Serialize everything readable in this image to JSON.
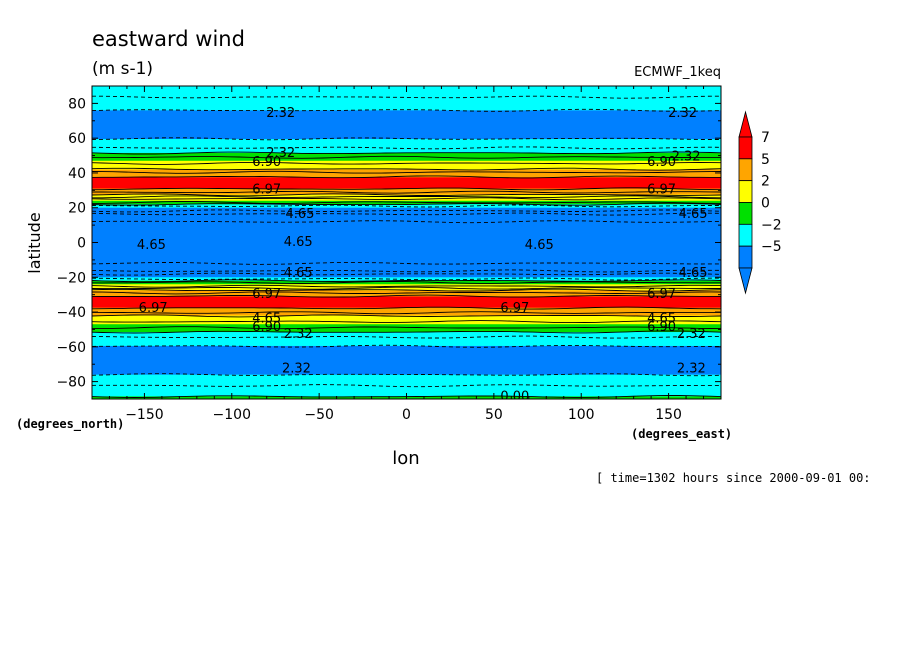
{
  "chart_data": {
    "type": "heatmap",
    "title": "eastward wind",
    "units": "(m s-1)",
    "dataset": "ECMWF_1keq",
    "xlabel": "lon",
    "ylabel": "latitude",
    "x_units": "(degrees_east)",
    "y_units": "(degrees_north)",
    "time_label": "[ time=1302 hours since 2000-09-01 00:",
    "xlim": [
      -180,
      180
    ],
    "ylim": [
      -90,
      90
    ],
    "x_ticks": [
      -150,
      -100,
      -50,
      0,
      50,
      100,
      150
    ],
    "y_ticks": [
      -80,
      -60,
      -40,
      -20,
      0,
      20,
      40,
      60,
      80
    ],
    "colorbar": {
      "ticks": [
        7,
        5,
        2,
        0,
        -2,
        -5
      ],
      "colors": [
        "#ff0000",
        "#ffa500",
        "#ffff00",
        "#00e000",
        "#00ffff",
        "#0080ff"
      ],
      "extend": "both"
    },
    "zonal_profile": {
      "lat": [
        -90,
        -85,
        -78,
        -70,
        -62,
        -55,
        -50,
        -47,
        -44,
        -40,
        -36,
        -32,
        -28,
        -24,
        -20,
        -16,
        -10,
        0,
        10,
        16,
        20,
        24,
        28,
        32,
        36,
        40,
        44,
        47,
        50,
        55,
        62,
        70,
        78,
        85,
        90
      ],
      "u": [
        0.2,
        -0.5,
        -1.8,
        -2.6,
        -2.4,
        -1.2,
        0.5,
        2.0,
        4.0,
        6.2,
        7.6,
        7.6,
        5.5,
        2.0,
        -2.0,
        -4.2,
        -5.4,
        -5.6,
        -5.4,
        -4.2,
        -2.0,
        2.0,
        5.5,
        7.6,
        7.6,
        6.2,
        4.0,
        2.0,
        0.5,
        -1.2,
        -2.4,
        -2.6,
        -1.8,
        -0.8,
        -0.2
      ]
    },
    "contour_labels": [
      {
        "text": "2.32",
        "lon": -72,
        "lat": 75
      },
      {
        "text": "2.32",
        "lon": 158,
        "lat": 75
      },
      {
        "text": "2.32",
        "lon": -72,
        "lat": 52
      },
      {
        "text": "2.32",
        "lon": 160,
        "lat": 50
      },
      {
        "text": "6.90",
        "lon": -80,
        "lat": 47
      },
      {
        "text": "6.90",
        "lon": 146,
        "lat": 47
      },
      {
        "text": "6.97",
        "lon": -80,
        "lat": 31
      },
      {
        "text": "6.97",
        "lon": 146,
        "lat": 31
      },
      {
        "text": "4.65",
        "lon": -61,
        "lat": 17
      },
      {
        "text": "4.65",
        "lon": 164,
        "lat": 17
      },
      {
        "text": "4.65",
        "lon": -146,
        "lat": -1
      },
      {
        "text": "4.65",
        "lon": -62,
        "lat": 1
      },
      {
        "text": "4.65",
        "lon": 76,
        "lat": -1
      },
      {
        "text": "4.65",
        "lon": -62,
        "lat": -17
      },
      {
        "text": "4.65",
        "lon": 164,
        "lat": -17
      },
      {
        "text": "6.97",
        "lon": -145,
        "lat": -37
      },
      {
        "text": "6.97",
        "lon": 62,
        "lat": -37
      },
      {
        "text": "6.97",
        "lon": -80,
        "lat": -29
      },
      {
        "text": "6.97",
        "lon": 146,
        "lat": -29
      },
      {
        "text": "4.65",
        "lon": -80,
        "lat": -43
      },
      {
        "text": "4.65",
        "lon": 146,
        "lat": -43
      },
      {
        "text": "6.90",
        "lon": -80,
        "lat": -48
      },
      {
        "text": "6.90",
        "lon": 146,
        "lat": -48
      },
      {
        "text": "2.32",
        "lon": -62,
        "lat": -52
      },
      {
        "text": "2.32",
        "lon": 163,
        "lat": -52
      },
      {
        "text": "2.32",
        "lon": -63,
        "lat": -72
      },
      {
        "text": "2.32",
        "lon": 163,
        "lat": -72
      },
      {
        "text": "0.00",
        "lon": 62,
        "lat": -88
      }
    ]
  }
}
